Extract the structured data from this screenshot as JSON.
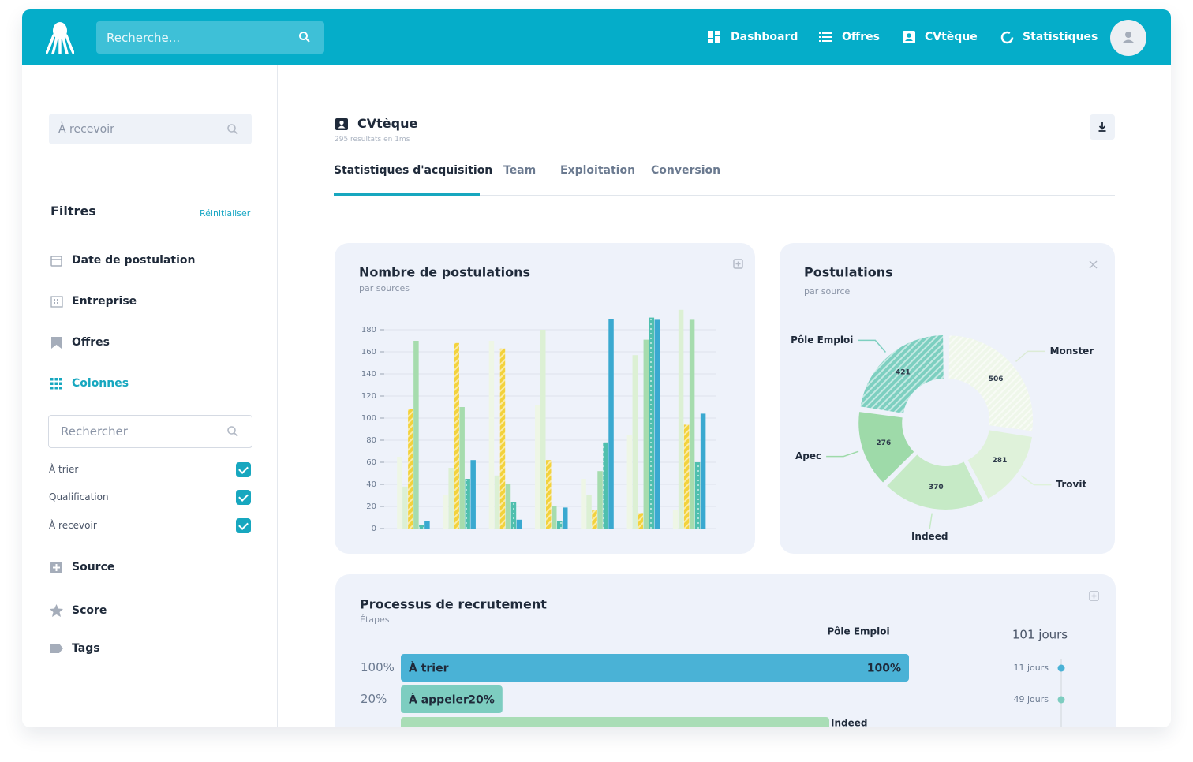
{
  "header": {
    "search_placeholder": "Recherche...",
    "nav": [
      "Dashboard",
      "Offres",
      "CVtèque",
      "Statistiques"
    ]
  },
  "sidebar": {
    "search_placeholder": "À recevoir",
    "filters_title": "Filtres",
    "reset": "Réinitialiser",
    "filters": [
      "Date de postulation",
      "Entreprise",
      "Offres",
      "Colonnes"
    ],
    "column_search": "Rechercher",
    "columns": [
      "À trier",
      "Qualification",
      "À recevoir"
    ],
    "more_filters": [
      "Source",
      "Score",
      "Tags"
    ]
  },
  "page": {
    "title": "CVtèque",
    "subtitle": "295 resultats en 1ms",
    "tabs": [
      "Statistiques d'acquisition",
      "Team",
      "Exploitation",
      "Conversion"
    ]
  },
  "chart_data": [
    {
      "type": "bar",
      "title": "Nombre de postulations",
      "subtitle": "par sources",
      "categories": [
        null,
        null,
        null,
        null,
        null,
        null,
        null
      ],
      "series": [
        {
          "color": "#eef6e6",
          "values": [
            65,
            30,
            170,
            112,
            45,
            85,
            17
          ]
        },
        {
          "color": "#dcf0d4",
          "values": [
            38,
            55,
            48,
            180,
            30,
            157,
            198
          ]
        },
        {
          "color": "#f3d23c",
          "pattern": "stripes",
          "values": [
            108,
            168,
            163,
            62,
            17,
            14,
            94
          ]
        },
        {
          "color": "#a6dcae",
          "values": [
            170,
            110,
            40,
            20,
            52,
            171,
            189
          ]
        },
        {
          "color": "#4fbfae",
          "pattern": "dots",
          "values": [
            3,
            45,
            24,
            7,
            78,
            191,
            60
          ]
        },
        {
          "color": "#3aa9d0",
          "values": [
            7,
            62,
            8,
            19,
            190,
            189,
            104
          ]
        }
      ],
      "ylim": [
        0,
        200
      ],
      "yticks": [
        0,
        20,
        40,
        60,
        80,
        100,
        120,
        140,
        160,
        180
      ],
      "grid": true
    },
    {
      "type": "pie",
      "title": "Postulations",
      "subtitle": "par source",
      "categories": [
        "Monster",
        "Trovit",
        "Indeed",
        "Apec",
        "Pôle Emploi"
      ],
      "values": [
        506,
        281,
        370,
        276,
        421
      ],
      "colors": [
        "#eff7ea",
        "#dff2da",
        "#c6eac6",
        "#9edaa9",
        "#7dcfc0"
      ],
      "patterns": [
        "stripes",
        null,
        null,
        null,
        "stripes"
      ]
    },
    {
      "type": "funnel",
      "title": "Processus de recrutement",
      "subtitle": "Étapes",
      "categories": [
        "À trier",
        "À appeler"
      ],
      "values": [
        100,
        20
      ],
      "value_labels": [
        "100%",
        "20%"
      ],
      "colors": [
        "#4ab2d6",
        "#7dcdc0"
      ],
      "xlim": [
        0,
        100
      ],
      "annotations": [
        "Pôle Emploi",
        "Indeed"
      ],
      "timeline": {
        "total": "101 jours",
        "steps": [
          "11 jours",
          "49 jours"
        ]
      }
    }
  ]
}
